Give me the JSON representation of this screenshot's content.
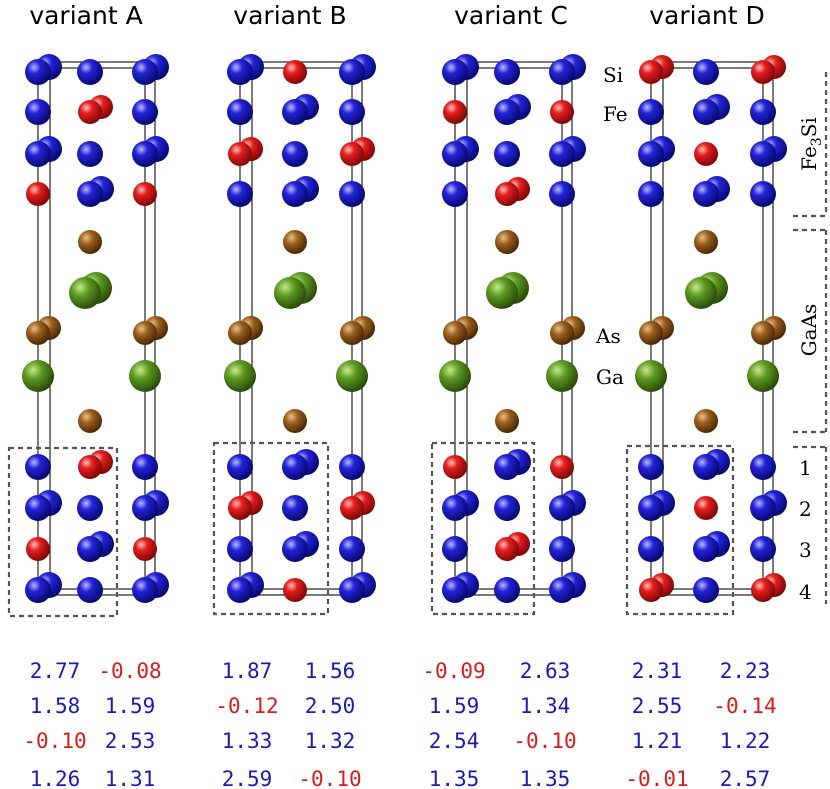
{
  "colors": {
    "Fe": "#1a1ab8",
    "Si": "#d81c1c",
    "As": "#8a5416",
    "Ga": "#4f8a1a",
    "positive_value": "#1a1ab8",
    "negative_value": "#d81c1c"
  },
  "variants": [
    {
      "title": "variant A",
      "values": [
        [
          "2.77",
          "-0.08"
        ],
        [
          "1.58",
          "1.59"
        ],
        [
          "-0.10",
          "2.53"
        ],
        [
          "1.26",
          "1.31"
        ]
      ]
    },
    {
      "title": "variant B",
      "values": [
        [
          "1.87",
          "1.56"
        ],
        [
          "-0.12",
          "2.50"
        ],
        [
          "1.33",
          "1.32"
        ],
        [
          "2.59",
          "-0.10"
        ]
      ]
    },
    {
      "title": "variant C",
      "values": [
        [
          "-0.09",
          "2.63"
        ],
        [
          "1.59",
          "1.34"
        ],
        [
          "2.54",
          "-0.10"
        ],
        [
          "1.35",
          "1.35"
        ]
      ]
    },
    {
      "title": "variant D",
      "values": [
        [
          "2.31",
          "2.23"
        ],
        [
          "2.55",
          "-0.14"
        ],
        [
          "1.21",
          "1.22"
        ],
        [
          "-0.01",
          "2.57"
        ]
      ]
    }
  ],
  "atom_labels": {
    "si": "Si",
    "fe": "Fe",
    "as": "As",
    "ga": "Ga"
  },
  "region_labels": {
    "fe3si_main": "Fe",
    "fe3si_sub": "3",
    "fe3si_end": "Si",
    "gaas": "GaAs"
  },
  "layer_numbers": [
    "1",
    "2",
    "3",
    "4"
  ]
}
